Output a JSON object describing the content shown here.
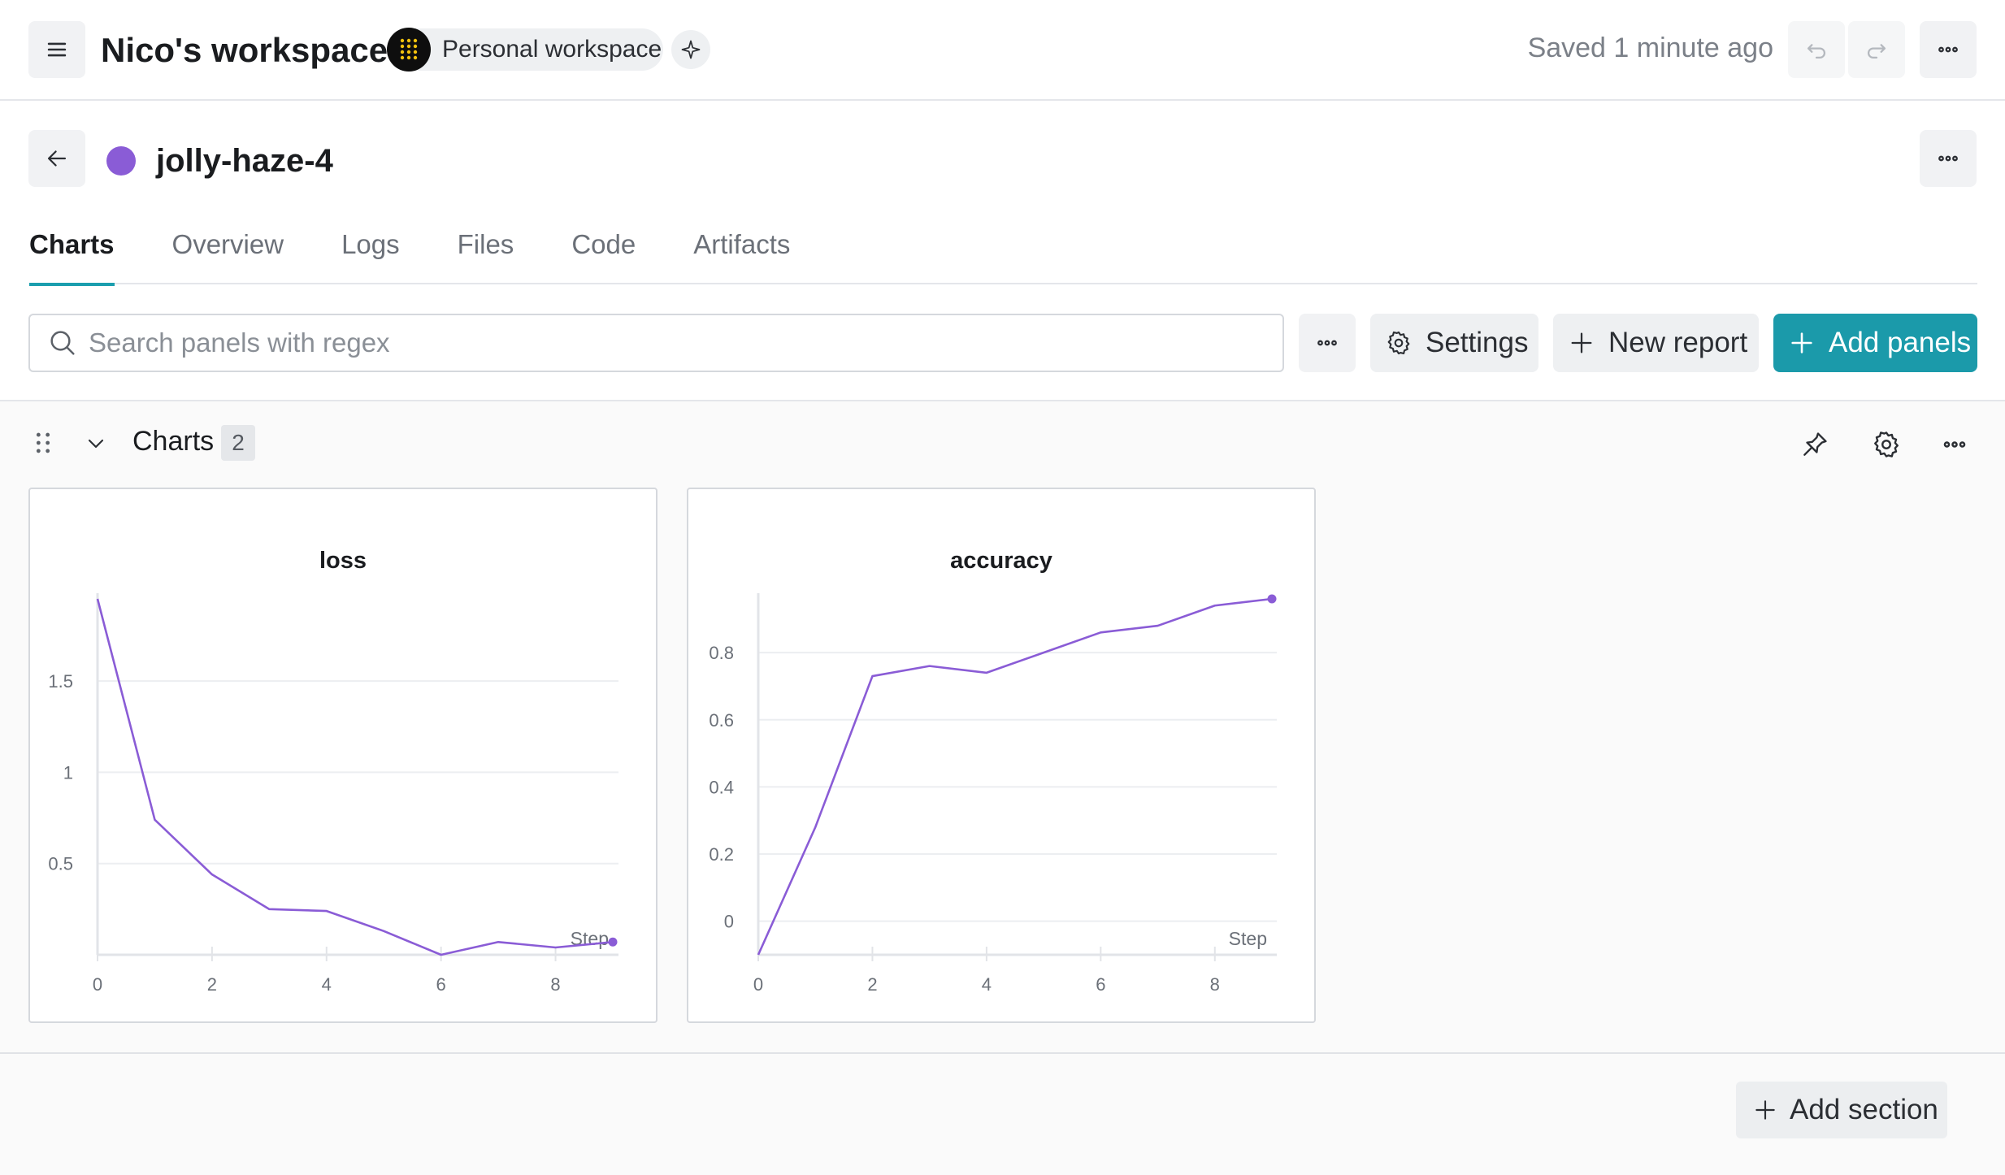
{
  "app": {
    "workspace_title": "Nico's workspace",
    "workspace_type": "Personal workspace",
    "saved_status": "Saved 1 minute ago"
  },
  "run": {
    "name": "jolly-haze-4",
    "color": "#8a5cd6"
  },
  "tabs": [
    "Charts",
    "Overview",
    "Logs",
    "Files",
    "Code",
    "Artifacts"
  ],
  "active_tab": "Charts",
  "toolbar": {
    "search_placeholder": "Search panels with regex",
    "settings_label": "Settings",
    "new_report_label": "New report",
    "add_panels_label": "Add panels"
  },
  "section": {
    "title": "Charts",
    "count": "2",
    "add_section_label": "Add section"
  },
  "colors": {
    "accent": "#1b9aaa",
    "series": "#8a5cd6"
  },
  "chart_data": [
    {
      "type": "line",
      "title": "loss",
      "xlabel": "Step",
      "x": [
        0,
        1,
        2,
        3,
        4,
        5,
        6,
        7,
        8,
        9
      ],
      "series": [
        {
          "values": [
            1.95,
            0.74,
            0.44,
            0.25,
            0.24,
            0.13,
            0.0,
            0.07,
            0.04,
            0.07
          ]
        }
      ],
      "xticks": [
        "0",
        "2",
        "4",
        "6",
        "8"
      ],
      "yticks": [
        "0.5",
        "1",
        "1.5"
      ],
      "xlim": [
        0,
        9
      ],
      "ylim": [
        0,
        1.95
      ],
      "grid": true
    },
    {
      "type": "line",
      "title": "accuracy",
      "xlabel": "Step",
      "x": [
        0,
        1,
        2,
        3,
        4,
        5,
        6,
        7,
        8,
        9
      ],
      "series": [
        {
          "values": [
            -0.1,
            0.28,
            0.73,
            0.76,
            0.74,
            0.8,
            0.86,
            0.88,
            0.94,
            0.96
          ]
        }
      ],
      "xticks": [
        "0",
        "2",
        "4",
        "6",
        "8"
      ],
      "yticks": [
        "0",
        "0.2",
        "0.4",
        "0.6",
        "0.8"
      ],
      "xlim": [
        0,
        9
      ],
      "ylim": [
        -0.1,
        0.96
      ],
      "grid": true
    }
  ]
}
